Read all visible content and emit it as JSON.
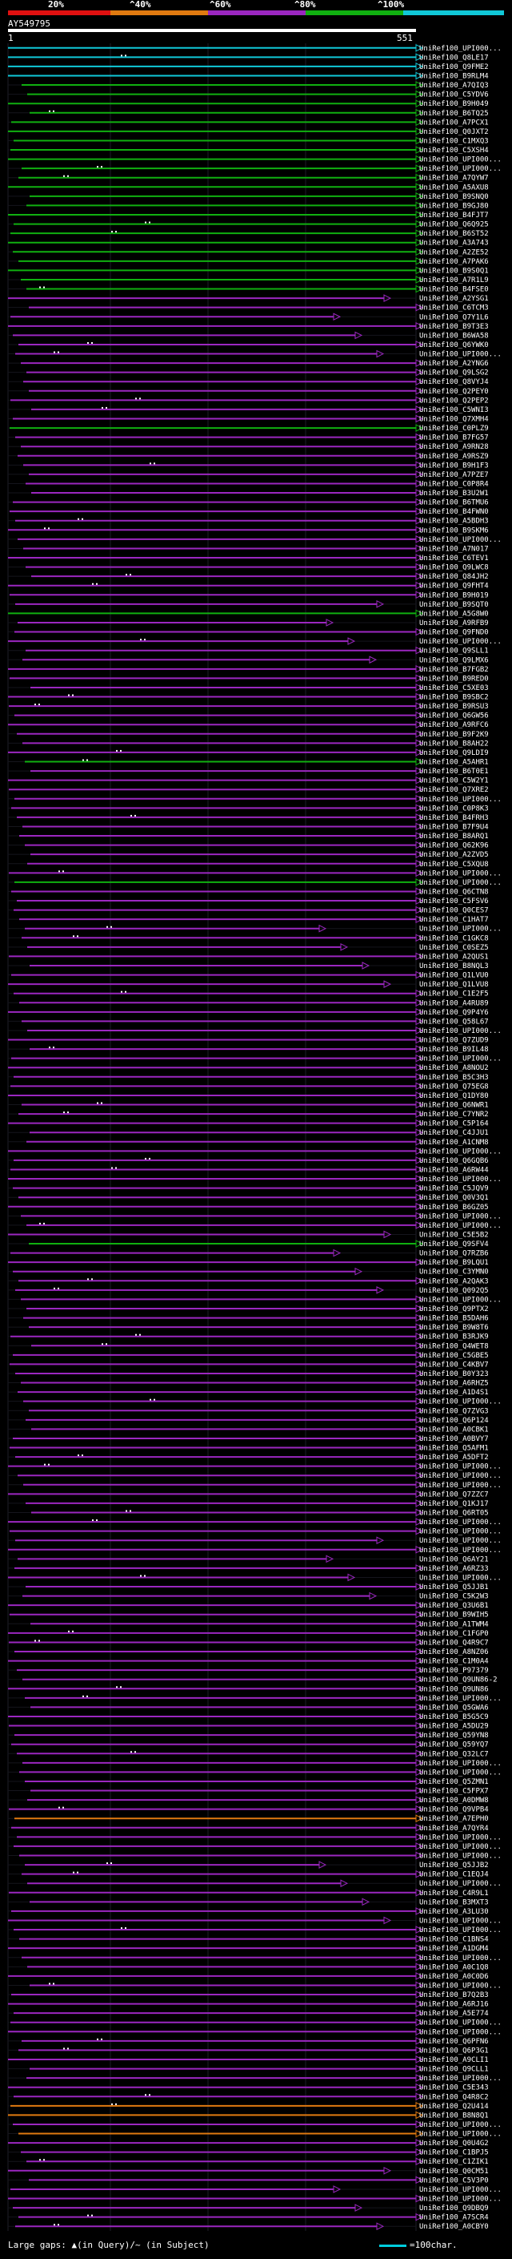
{
  "legend": {
    "labels": [
      "20%",
      "^40%",
      "^60%",
      "^80%",
      "^100%"
    ],
    "colors": [
      "#e01010",
      "#e07a10",
      "#9b27c0",
      "#10b010",
      "#10c8d8"
    ]
  },
  "query": {
    "title": "AY549795",
    "ruler_start": "1",
    "ruler_end": "551"
  },
  "hits": [
    {
      "label": "UniRef100_UPI000...",
      "identity": "100"
    },
    {
      "label": "UniRef100_Q8LE17",
      "identity": "100"
    },
    {
      "label": "UniRef100_Q9FME2",
      "identity": "100"
    },
    {
      "label": "UniRef100_B9RLM4",
      "identity": "100"
    },
    {
      "label": "UniRef100_A7QIQ3",
      "identity": "80"
    },
    {
      "label": "UniRef100_C5YDV6",
      "identity": "80"
    },
    {
      "label": "UniRef100_B9H049",
      "identity": "80"
    },
    {
      "label": "UniRef100_B6TQ25",
      "identity": "80"
    },
    {
      "label": "UniRef100_A7PCX1",
      "identity": "80"
    },
    {
      "label": "UniRef100_Q0JXT2",
      "identity": "80"
    },
    {
      "label": "UniRef100_C1MXQ3",
      "identity": "80"
    },
    {
      "label": "UniRef100_C5XSH4",
      "identity": "80"
    },
    {
      "label": "UniRef100_UPI000...",
      "identity": "80"
    },
    {
      "label": "UniRef100_UPI000...",
      "identity": "80"
    },
    {
      "label": "UniRef100_A7QYW7",
      "identity": "80"
    },
    {
      "label": "UniRef100_A5AXU8",
      "identity": "80"
    },
    {
      "label": "UniRef100_B9SNQ0",
      "identity": "80"
    },
    {
      "label": "UniRef100_B9GJ80",
      "identity": "80"
    },
    {
      "label": "UniRef100_B4FJT7",
      "identity": "80"
    },
    {
      "label": "UniRef100_Q6Q925",
      "identity": "80"
    },
    {
      "label": "UniRef100_B6ST52",
      "identity": "80"
    },
    {
      "label": "UniRef100_A3A743",
      "identity": "80"
    },
    {
      "label": "UniRef100_A2ZE52",
      "identity": "80"
    },
    {
      "label": "UniRef100_A7PAK6",
      "identity": "80"
    },
    {
      "label": "UniRef100_B9S0Q1",
      "identity": "80"
    },
    {
      "label": "UniRef100_A7R1L9",
      "identity": "80"
    },
    {
      "label": "UniRef100_B4FSE0",
      "identity": "80"
    },
    {
      "label": "UniRef100_A2YSG1",
      "identity": "60"
    },
    {
      "label": "UniRef100_C6TCM3",
      "identity": "60"
    },
    {
      "label": "UniRef100_Q7Y1L6",
      "identity": "60"
    },
    {
      "label": "UniRef100_B9T3E3",
      "identity": "60"
    },
    {
      "label": "UniRef100_B6WA58",
      "identity": "60"
    },
    {
      "label": "UniRef100_Q6YWK0",
      "identity": "60"
    },
    {
      "label": "UniRef100_UPI000...",
      "identity": "60"
    },
    {
      "label": "UniRef100_A2YNG6",
      "identity": "60"
    },
    {
      "label": "UniRef100_Q9LSG2",
      "identity": "60"
    },
    {
      "label": "UniRef100_Q8VYJ4",
      "identity": "60"
    },
    {
      "label": "UniRef100_Q2PEY0",
      "identity": "60"
    },
    {
      "label": "UniRef100_Q2PEP2",
      "identity": "60"
    },
    {
      "label": "UniRef100_C5WNI3",
      "identity": "60"
    },
    {
      "label": "UniRef100_Q7XMH4",
      "identity": "60"
    },
    {
      "label": "UniRef100_C0PLZ9",
      "identity": "80"
    },
    {
      "label": "UniRef100_B7FG57",
      "identity": "60"
    },
    {
      "label": "UniRef100_A9RN28",
      "identity": "60"
    },
    {
      "label": "UniRef100_A9RSZ9",
      "identity": "60"
    },
    {
      "label": "UniRef100_B9H1F3",
      "identity": "60"
    },
    {
      "label": "UniRef100_A7PZE7",
      "identity": "60"
    },
    {
      "label": "UniRef100_C0P8R4",
      "identity": "60"
    },
    {
      "label": "UniRef100_B3U2W1",
      "identity": "60"
    },
    {
      "label": "UniRef100_B6TMU6",
      "identity": "60"
    },
    {
      "label": "UniRef100_B4FWN0",
      "identity": "60"
    },
    {
      "label": "UniRef100_A5BDH3",
      "identity": "60"
    },
    {
      "label": "UniRef100_B9SKM6",
      "identity": "60"
    },
    {
      "label": "UniRef100_UPI000...",
      "identity": "60"
    },
    {
      "label": "UniRef100_A7N017",
      "identity": "60"
    },
    {
      "label": "UniRef100_C6TEV1",
      "identity": "60"
    },
    {
      "label": "UniRef100_Q9LWC8",
      "identity": "60"
    },
    {
      "label": "UniRef100_Q84JH2",
      "identity": "60"
    },
    {
      "label": "UniRef100_Q9FHT4",
      "identity": "60"
    },
    {
      "label": "UniRef100_B9H019",
      "identity": "60"
    },
    {
      "label": "UniRef100_B9SQT0",
      "identity": "60"
    },
    {
      "label": "UniRef100_A5G8W0",
      "identity": "80"
    },
    {
      "label": "UniRef100_A9RFB9",
      "identity": "60"
    },
    {
      "label": "UniRef100_Q9FND0",
      "identity": "60"
    },
    {
      "label": "UniRef100_UPI000...",
      "identity": "60"
    },
    {
      "label": "UniRef100_Q9SLL1",
      "identity": "60"
    },
    {
      "label": "UniRef100_Q9LMX6",
      "identity": "60"
    },
    {
      "label": "UniRef100_B7FGB2",
      "identity": "60"
    },
    {
      "label": "UniRef100_B9RED0",
      "identity": "60"
    },
    {
      "label": "UniRef100_C5XE03",
      "identity": "60"
    },
    {
      "label": "UniRef100_B9SBC2",
      "identity": "60"
    },
    {
      "label": "UniRef100_B9RSU3",
      "identity": "60"
    },
    {
      "label": "UniRef100_Q6GW56",
      "identity": "60"
    },
    {
      "label": "UniRef100_A9RFC6",
      "identity": "60"
    },
    {
      "label": "UniRef100_B9F2K9",
      "identity": "60"
    },
    {
      "label": "UniRef100_B8AH22",
      "identity": "60"
    },
    {
      "label": "UniRef100_Q9LDI9",
      "identity": "60"
    },
    {
      "label": "UniRef100_A5AHR1",
      "identity": "80"
    },
    {
      "label": "UniRef100_B6T0E1",
      "identity": "60"
    },
    {
      "label": "UniRef100_C5W2Y1",
      "identity": "60"
    },
    {
      "label": "UniRef100_Q7XRE2",
      "identity": "60"
    },
    {
      "label": "UniRef100_UPI000...",
      "identity": "60"
    },
    {
      "label": "UniRef100_C0P8K3",
      "identity": "60"
    },
    {
      "label": "UniRef100_B4FRH3",
      "identity": "60"
    },
    {
      "label": "UniRef100_B7F9U4",
      "identity": "60"
    },
    {
      "label": "UniRef100_B8ARQ1",
      "identity": "60"
    },
    {
      "label": "UniRef100_Q62K96",
      "identity": "60"
    },
    {
      "label": "UniRef100_A2ZVD5",
      "identity": "60"
    },
    {
      "label": "UniRef100_C5XQU8",
      "identity": "60"
    },
    {
      "label": "UniRef100_UPI000...",
      "identity": "60"
    },
    {
      "label": "UniRef100_UPI000...",
      "identity": "80"
    },
    {
      "label": "UniRef100_Q6CTN8",
      "identity": "60"
    },
    {
      "label": "UniRef100_C5FSV6",
      "identity": "60"
    },
    {
      "label": "UniRef100_Q0CES7",
      "identity": "60"
    },
    {
      "label": "UniRef100_C1HAT7",
      "identity": "60"
    },
    {
      "label": "UniRef100_UPI000...",
      "identity": "60"
    },
    {
      "label": "UniRef100_C1GKC8",
      "identity": "60"
    },
    {
      "label": "UniRef100_C0SEZ5",
      "identity": "60"
    },
    {
      "label": "UniRef100_A2QUS1",
      "identity": "60"
    },
    {
      "label": "UniRef100_B8NQL3",
      "identity": "60"
    },
    {
      "label": "UniRef100_Q1LVU0",
      "identity": "60"
    },
    {
      "label": "UniRef100_Q1LVU8",
      "identity": "60"
    },
    {
      "label": "UniRef100_C1E2F5",
      "identity": "60"
    },
    {
      "label": "UniRef100_A4RU89",
      "identity": "60"
    },
    {
      "label": "UniRef100_Q9P4Y6",
      "identity": "60"
    },
    {
      "label": "UniRef100_Q58L67",
      "identity": "60"
    },
    {
      "label": "UniRef100_UPI000...",
      "identity": "60"
    },
    {
      "label": "UniRef100_Q7ZUD9",
      "identity": "60"
    },
    {
      "label": "UniRef100_B9IL48",
      "identity": "60"
    },
    {
      "label": "UniRef100_UPI000...",
      "identity": "60"
    },
    {
      "label": "UniRef100_A8NOU2",
      "identity": "60"
    },
    {
      "label": "UniRef100_B5C3H3",
      "identity": "60"
    },
    {
      "label": "UniRef100_Q75EG8",
      "identity": "60"
    },
    {
      "label": "UniRef100_Q1DY80",
      "identity": "60"
    },
    {
      "label": "UniRef100_Q6NWR1",
      "identity": "60"
    },
    {
      "label": "UniRef100_C7YNR2",
      "identity": "60"
    },
    {
      "label": "UniRef100_C5P164",
      "identity": "60"
    },
    {
      "label": "UniRef100_C4JJU1",
      "identity": "60"
    },
    {
      "label": "UniRef100_A1CNM8",
      "identity": "60"
    },
    {
      "label": "UniRef100_UPI000...",
      "identity": "60"
    },
    {
      "label": "UniRef100_Q6GQB6",
      "identity": "60"
    },
    {
      "label": "UniRef100_A6RW44",
      "identity": "60"
    },
    {
      "label": "UniRef100_UPI000...",
      "identity": "60"
    },
    {
      "label": "UniRef100_C5JQV9",
      "identity": "60"
    },
    {
      "label": "UniRef100_Q0V3Q1",
      "identity": "60"
    },
    {
      "label": "UniRef100_B6GZ05",
      "identity": "60"
    },
    {
      "label": "UniRef100_UPI000...",
      "identity": "60"
    },
    {
      "label": "UniRef100_UPI000...",
      "identity": "60"
    },
    {
      "label": "UniRef100_C5E5B2",
      "identity": "60"
    },
    {
      "label": "UniRef100_Q9SFV4",
      "identity": "80"
    },
    {
      "label": "UniRef100_Q7RZB6",
      "identity": "60"
    },
    {
      "label": "UniRef100_B9LQU1",
      "identity": "60"
    },
    {
      "label": "UniRef100_C3YMN0",
      "identity": "60"
    },
    {
      "label": "UniRef100_A2QAK3",
      "identity": "60"
    },
    {
      "label": "UniRef100_Q092Q5",
      "identity": "60"
    },
    {
      "label": "UniRef100_UPI000...",
      "identity": "60"
    },
    {
      "label": "UniRef100_Q9PTX2",
      "identity": "60"
    },
    {
      "label": "UniRef100_B5DAH6",
      "identity": "60"
    },
    {
      "label": "UniRef100_B9W8T6",
      "identity": "60"
    },
    {
      "label": "UniRef100_B3RJK9",
      "identity": "60"
    },
    {
      "label": "UniRef100_Q4WET8",
      "identity": "60"
    },
    {
      "label": "UniRef100_C5GBE5",
      "identity": "60"
    },
    {
      "label": "UniRef100_C4KBV7",
      "identity": "60"
    },
    {
      "label": "UniRef100_B0Y323",
      "identity": "60"
    },
    {
      "label": "UniRef100_A6RHZ5",
      "identity": "60"
    },
    {
      "label": "UniRef100_A1D4S1",
      "identity": "60"
    },
    {
      "label": "UniRef100_UPI000...",
      "identity": "60"
    },
    {
      "label": "UniRef100_Q7ZVG3",
      "identity": "60"
    },
    {
      "label": "UniRef100_Q6P124",
      "identity": "60"
    },
    {
      "label": "UniRef100_A0CBK1",
      "identity": "60"
    },
    {
      "label": "UniRef100_A0BVY7",
      "identity": "60"
    },
    {
      "label": "UniRef100_Q5AFM1",
      "identity": "60"
    },
    {
      "label": "UniRef100_A5DFT2",
      "identity": "60"
    },
    {
      "label": "UniRef100_UPI000...",
      "identity": "60"
    },
    {
      "label": "UniRef100_UPI000...",
      "identity": "60"
    },
    {
      "label": "UniRef100_UPI000...",
      "identity": "60"
    },
    {
      "label": "UniRef100_Q7ZZC7",
      "identity": "60"
    },
    {
      "label": "UniRef100_Q1KJ17",
      "identity": "60"
    },
    {
      "label": "UniRef100_Q6RT05",
      "identity": "60"
    },
    {
      "label": "UniRef100_UPI000...",
      "identity": "60"
    },
    {
      "label": "UniRef100_UPI000...",
      "identity": "60"
    },
    {
      "label": "UniRef100_UPI000...",
      "identity": "60"
    },
    {
      "label": "UniRef100_UPI000...",
      "identity": "60"
    },
    {
      "label": "UniRef100_Q6AY21",
      "identity": "60"
    },
    {
      "label": "UniRef100_A6RZ33",
      "identity": "60"
    },
    {
      "label": "UniRef100_UPI000...",
      "identity": "60"
    },
    {
      "label": "UniRef100_Q5JJB1",
      "identity": "60"
    },
    {
      "label": "UniRef100_C5K2W3",
      "identity": "60"
    },
    {
      "label": "UniRef100_Q3U6B1",
      "identity": "60"
    },
    {
      "label": "UniRef100_B9WIH5",
      "identity": "60"
    },
    {
      "label": "UniRef100_A1TWM4",
      "identity": "60"
    },
    {
      "label": "UniRef100_C1FGP0",
      "identity": "60"
    },
    {
      "label": "UniRef100_Q4R9C7",
      "identity": "60"
    },
    {
      "label": "UniRef100_A8NZ06",
      "identity": "60"
    },
    {
      "label": "UniRef100_C1M0A4",
      "identity": "60"
    },
    {
      "label": "UniRef100_P97379",
      "identity": "60"
    },
    {
      "label": "UniRef100_Q9UN86-2",
      "identity": "60"
    },
    {
      "label": "UniRef100_Q9UN86",
      "identity": "60"
    },
    {
      "label": "UniRef100_UPI000...",
      "identity": "60"
    },
    {
      "label": "UniRef100_Q5GWA6",
      "identity": "60"
    },
    {
      "label": "UniRef100_B5G5C9",
      "identity": "60"
    },
    {
      "label": "UniRef100_A5DU29",
      "identity": "60"
    },
    {
      "label": "UniRef100_Q59YN8",
      "identity": "60"
    },
    {
      "label": "UniRef100_Q59YQ7",
      "identity": "60"
    },
    {
      "label": "UniRef100_Q32LC7",
      "identity": "60"
    },
    {
      "label": "UniRef100_UPI000...",
      "identity": "60"
    },
    {
      "label": "UniRef100_UPI000...",
      "identity": "60"
    },
    {
      "label": "UniRef100_Q5ZMN1",
      "identity": "60"
    },
    {
      "label": "UniRef100_C5FPX7",
      "identity": "60"
    },
    {
      "label": "UniRef100_A0DMW8",
      "identity": "60"
    },
    {
      "label": "UniRef100_Q9VPB4",
      "identity": "60"
    },
    {
      "label": "UniRef100_A7EPH0",
      "identity": "40"
    },
    {
      "label": "UniRef100_A7QYR4",
      "identity": "60"
    },
    {
      "label": "UniRef100_UPI000...",
      "identity": "60"
    },
    {
      "label": "UniRef100_UPI000...",
      "identity": "60"
    },
    {
      "label": "UniRef100_UPI000...",
      "identity": "60"
    },
    {
      "label": "UniRef100_Q5JJB2",
      "identity": "60"
    },
    {
      "label": "UniRef100_C1EQJ4",
      "identity": "60"
    },
    {
      "label": "UniRef100_UPI000...",
      "identity": "60"
    },
    {
      "label": "UniRef100_C4R9L1",
      "identity": "60"
    },
    {
      "label": "UniRef100_B3MXT3",
      "identity": "60"
    },
    {
      "label": "UniRef100_A3LU30",
      "identity": "60"
    },
    {
      "label": "UniRef100_UPI000...",
      "identity": "60"
    },
    {
      "label": "UniRef100_UPI000...",
      "identity": "60"
    },
    {
      "label": "UniRef100_C1BNS4",
      "identity": "60"
    },
    {
      "label": "UniRef100_A1DGM4",
      "identity": "60"
    },
    {
      "label": "UniRef100_UPI000...",
      "identity": "60"
    },
    {
      "label": "UniRef100_A0C1Q8",
      "identity": "60"
    },
    {
      "label": "UniRef100_A0C0D6",
      "identity": "60"
    },
    {
      "label": "UniRef100_UPI000...",
      "identity": "60"
    },
    {
      "label": "UniRef100_B7Q2B3",
      "identity": "60"
    },
    {
      "label": "UniRef100_A6RJ16",
      "identity": "60"
    },
    {
      "label": "UniRef100_A5E774",
      "identity": "60"
    },
    {
      "label": "UniRef100_UPI000...",
      "identity": "60"
    },
    {
      "label": "UniRef100_UPI000...",
      "identity": "60"
    },
    {
      "label": "UniRef100_Q6PFN6",
      "identity": "60"
    },
    {
      "label": "UniRef100_Q6P3G1",
      "identity": "60"
    },
    {
      "label": "UniRef100_A9CLI1",
      "identity": "60"
    },
    {
      "label": "UniRef100_Q9CLL1",
      "identity": "60"
    },
    {
      "label": "UniRef100_UPI000...",
      "identity": "60"
    },
    {
      "label": "UniRef100_C5E343",
      "identity": "60"
    },
    {
      "label": "UniRef100_Q4R8C2",
      "identity": "60"
    },
    {
      "label": "UniRef100_Q2U414",
      "identity": "40"
    },
    {
      "label": "UniRef100_B8N8Q1",
      "identity": "40"
    },
    {
      "label": "UniRef100_UPI000...",
      "identity": "60"
    },
    {
      "label": "UniRef100_UPI000...",
      "identity": "40"
    },
    {
      "label": "UniRef100_Q0U4G2",
      "identity": "60"
    },
    {
      "label": "UniRef100_C1BPJ5",
      "identity": "60"
    },
    {
      "label": "UniRef100_C1ZIK1",
      "identity": "60"
    },
    {
      "label": "UniRef100_Q0CM51",
      "identity": "60"
    },
    {
      "label": "UniRef100_C5V3P0",
      "identity": "60"
    },
    {
      "label": "UniRef100_UPI000...",
      "identity": "60"
    },
    {
      "label": "UniRef100_UPI000...",
      "identity": "60"
    },
    {
      "label": "UniRef100_Q9DBQ9",
      "identity": "60"
    },
    {
      "label": "UniRef100_A7SCR4",
      "identity": "60"
    },
    {
      "label": "UniRef100_A0CBY0",
      "identity": "60"
    }
  ],
  "footer": {
    "gap_label": "Large gaps: ▲(in Query)/~ (in Subject)",
    "scale_label": "=100char."
  }
}
